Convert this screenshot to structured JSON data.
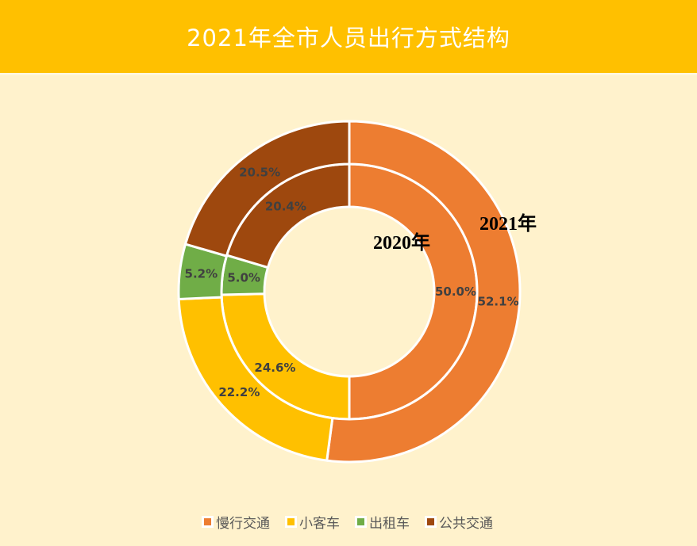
{
  "title": "2021年全市人员出行方式结构",
  "chart_data": {
    "type": "doughnut",
    "title": "2021年全市人员出行方式结构",
    "categories": [
      "慢行交通",
      "小客车",
      "出租车",
      "公共交通"
    ],
    "colors": [
      "#ED7D31",
      "#FFC000",
      "#70AD47",
      "#9E480E"
    ],
    "series": [
      {
        "name": "2020年",
        "ring": "inner",
        "values": [
          50.0,
          24.6,
          5.0,
          20.4
        ],
        "labels": [
          "50.0%",
          "24.6%",
          "5.0%",
          "20.4%"
        ]
      },
      {
        "name": "2021年",
        "ring": "outer",
        "values": [
          52.1,
          22.2,
          5.2,
          20.5
        ],
        "labels": [
          "52.1%",
          "22.2%",
          "5.2%",
          "20.5%"
        ]
      }
    ],
    "legend_position": "bottom"
  }
}
